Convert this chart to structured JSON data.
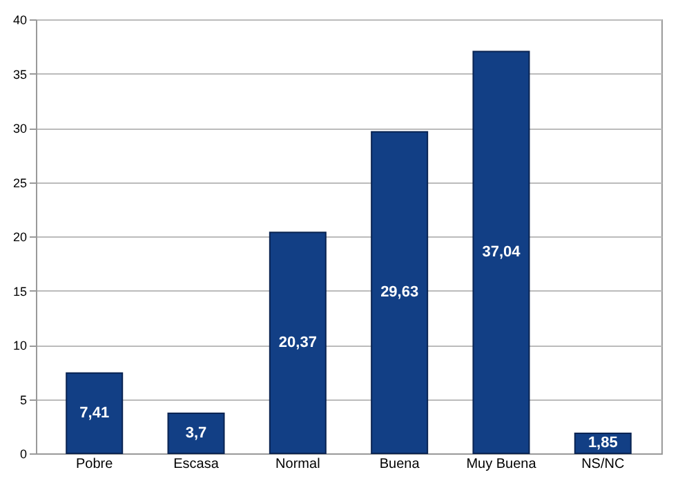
{
  "chart_data": {
    "type": "bar",
    "categories": [
      "Pobre",
      "Escasa",
      "Normal",
      "Buena",
      "Muy Buena",
      "NS/NC"
    ],
    "values": [
      7.41,
      3.7,
      20.37,
      29.63,
      37.04,
      1.85
    ],
    "value_labels": [
      "7,41",
      "3,7",
      "20,37",
      "29,63",
      "37,04",
      "1,85"
    ],
    "color": "#123f85",
    "ylim": [
      0,
      40
    ],
    "yticks": [
      0,
      5,
      10,
      15,
      20,
      25,
      30,
      35,
      40
    ],
    "grid": "y"
  }
}
